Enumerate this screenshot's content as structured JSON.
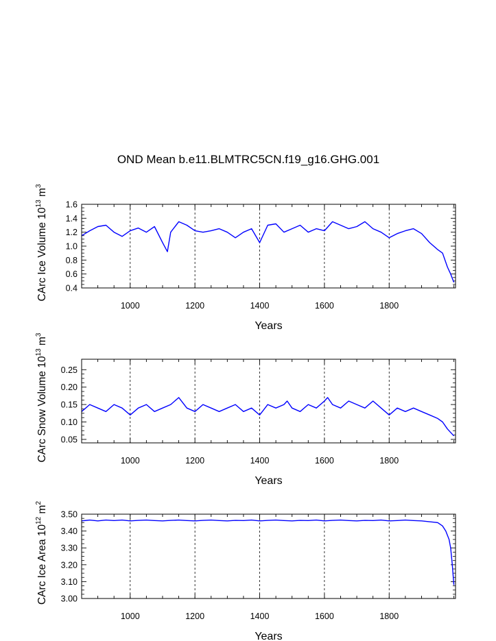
{
  "title": "OND Mean b.e11.BLMTRC5CN.f19_g16.GHG.001",
  "chart_data": [
    {
      "type": "line",
      "xlabel": "Years",
      "ylabel": {
        "prefix": "CArc Ice Volume 10",
        "exp": "13",
        "unit": " m",
        "unit_exp": "3"
      },
      "xlim": [
        850,
        2005
      ],
      "ylim": [
        0.4,
        1.6
      ],
      "xticks": [
        1000,
        1200,
        1400,
        1600,
        1800
      ],
      "xtick_labels": [
        "1000",
        "1200",
        "1400",
        "1600",
        "1800"
      ],
      "yticks": [
        0.4,
        0.6,
        0.8,
        1.0,
        1.2,
        1.4,
        1.6
      ],
      "ytick_labels": [
        "0.4",
        "0.6",
        "0.8",
        "1.0",
        "1.2",
        "1.4",
        "1.6"
      ],
      "grid": "vertical dashed at major x ticks",
      "color": "#0000ff",
      "x": [
        850,
        875,
        900,
        925,
        950,
        975,
        1000,
        1025,
        1050,
        1075,
        1100,
        1115,
        1125,
        1150,
        1175,
        1200,
        1225,
        1250,
        1275,
        1300,
        1325,
        1350,
        1375,
        1400,
        1425,
        1450,
        1475,
        1500,
        1525,
        1550,
        1575,
        1600,
        1625,
        1650,
        1675,
        1700,
        1725,
        1750,
        1775,
        1800,
        1825,
        1850,
        1875,
        1900,
        1925,
        1950,
        1965,
        1980,
        1990,
        2000
      ],
      "values": [
        1.15,
        1.22,
        1.28,
        1.3,
        1.2,
        1.14,
        1.22,
        1.26,
        1.2,
        1.28,
        1.05,
        0.92,
        1.2,
        1.35,
        1.3,
        1.22,
        1.2,
        1.22,
        1.25,
        1.2,
        1.12,
        1.2,
        1.25,
        1.05,
        1.3,
        1.32,
        1.2,
        1.25,
        1.3,
        1.2,
        1.25,
        1.22,
        1.35,
        1.3,
        1.25,
        1.28,
        1.35,
        1.25,
        1.2,
        1.12,
        1.18,
        1.22,
        1.25,
        1.18,
        1.05,
        0.95,
        0.9,
        0.7,
        0.6,
        0.48
      ]
    },
    {
      "type": "line",
      "xlabel": "Years",
      "ylabel": {
        "prefix": "CArc Snow Volume 10",
        "exp": "13",
        "unit": " m",
        "unit_exp": "3"
      },
      "xlim": [
        850,
        2005
      ],
      "ylim": [
        0.04,
        0.28
      ],
      "xticks": [
        1000,
        1200,
        1400,
        1600,
        1800
      ],
      "xtick_labels": [
        "1000",
        "1200",
        "1400",
        "1600",
        "1800"
      ],
      "yticks": [
        0.05,
        0.1,
        0.15,
        0.2,
        0.25
      ],
      "ytick_labels": [
        "0.05",
        "0.10",
        "0.15",
        "0.20",
        "0.25"
      ],
      "grid": "vertical dashed at major x ticks",
      "color": "#0000ff",
      "x": [
        850,
        875,
        900,
        925,
        950,
        975,
        1000,
        1025,
        1050,
        1075,
        1100,
        1125,
        1150,
        1175,
        1200,
        1225,
        1250,
        1275,
        1300,
        1325,
        1350,
        1375,
        1400,
        1425,
        1450,
        1475,
        1485,
        1500,
        1525,
        1550,
        1575,
        1600,
        1610,
        1625,
        1650,
        1675,
        1700,
        1725,
        1750,
        1775,
        1800,
        1825,
        1850,
        1875,
        1900,
        1925,
        1950,
        1965,
        1980,
        1990,
        2000
      ],
      "values": [
        0.13,
        0.15,
        0.14,
        0.13,
        0.15,
        0.14,
        0.12,
        0.14,
        0.15,
        0.13,
        0.14,
        0.15,
        0.17,
        0.14,
        0.13,
        0.15,
        0.14,
        0.13,
        0.14,
        0.15,
        0.13,
        0.14,
        0.12,
        0.15,
        0.14,
        0.15,
        0.16,
        0.14,
        0.13,
        0.15,
        0.14,
        0.16,
        0.17,
        0.15,
        0.14,
        0.16,
        0.15,
        0.14,
        0.16,
        0.14,
        0.12,
        0.14,
        0.13,
        0.14,
        0.13,
        0.12,
        0.11,
        0.1,
        0.08,
        0.07,
        0.06
      ]
    },
    {
      "type": "line",
      "xlabel": "Years",
      "ylabel": {
        "prefix": "CArc Ice Area 10",
        "exp": "12",
        "unit": " m",
        "unit_exp": "2"
      },
      "xlim": [
        850,
        2005
      ],
      "ylim": [
        3.0,
        3.5
      ],
      "xticks": [
        1000,
        1200,
        1400,
        1600,
        1800
      ],
      "xtick_labels": [
        "1000",
        "1200",
        "1400",
        "1600",
        "1800"
      ],
      "yticks": [
        3.0,
        3.1,
        3.2,
        3.3,
        3.4,
        3.5
      ],
      "ytick_labels": [
        "3.00",
        "3.10",
        "3.20",
        "3.30",
        "3.40",
        "3.50"
      ],
      "grid": "vertical dashed at major x ticks",
      "color": "#0000ff",
      "x": [
        850,
        875,
        900,
        925,
        950,
        975,
        1000,
        1025,
        1050,
        1075,
        1100,
        1125,
        1150,
        1175,
        1200,
        1225,
        1250,
        1275,
        1300,
        1325,
        1350,
        1375,
        1400,
        1425,
        1450,
        1475,
        1500,
        1525,
        1550,
        1575,
        1600,
        1625,
        1650,
        1675,
        1700,
        1725,
        1750,
        1775,
        1800,
        1825,
        1850,
        1875,
        1900,
        1925,
        1950,
        1965,
        1975,
        1985,
        1990,
        1995,
        2000
      ],
      "values": [
        3.46,
        3.465,
        3.46,
        3.465,
        3.462,
        3.465,
        3.46,
        3.463,
        3.465,
        3.462,
        3.46,
        3.463,
        3.465,
        3.462,
        3.46,
        3.463,
        3.465,
        3.462,
        3.46,
        3.463,
        3.462,
        3.465,
        3.46,
        3.463,
        3.465,
        3.462,
        3.46,
        3.463,
        3.462,
        3.465,
        3.46,
        3.463,
        3.465,
        3.462,
        3.46,
        3.463,
        3.462,
        3.465,
        3.46,
        3.462,
        3.465,
        3.462,
        3.46,
        3.455,
        3.45,
        3.43,
        3.4,
        3.35,
        3.3,
        3.2,
        3.08
      ]
    }
  ]
}
